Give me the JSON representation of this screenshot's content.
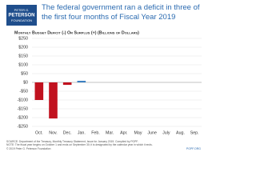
{
  "logo": {
    "line1": "PETER G.",
    "line2": "PETERSON",
    "line3": "FOUNDATION"
  },
  "chart_data": {
    "type": "bar",
    "title": "The federal government ran a deficit in three of the first four months of Fiscal Year 2019",
    "subtitle": "Monthly Budget Deficit (-) Or Surplus (+) (Billions of Dollars)",
    "categories": [
      "Oct.",
      "Nov.",
      "Dec.",
      "Jan.",
      "Feb.",
      "Mar.",
      "Apr.",
      "May",
      "June",
      "July",
      "Aug.",
      "Sep."
    ],
    "values": [
      -100,
      -205,
      -14,
      9,
      null,
      null,
      null,
      null,
      null,
      null,
      null,
      null
    ],
    "colors": [
      "#c1121f",
      "#c1121f",
      "#c1121f",
      "#3a7fc1",
      "#c1121f",
      "#c1121f",
      "#c1121f",
      "#c1121f",
      "#c1121f",
      "#c1121f",
      "#c1121f",
      "#c1121f"
    ],
    "ylim": [
      -250,
      250
    ],
    "yticks": [
      {
        "value": 250,
        "label": "$250"
      },
      {
        "value": 200,
        "label": "$200"
      },
      {
        "value": 150,
        "label": "$150"
      },
      {
        "value": 100,
        "label": "$100"
      },
      {
        "value": 50,
        "label": "$50"
      },
      {
        "value": 0,
        "label": "$0"
      },
      {
        "value": -50,
        "label": "-$50"
      },
      {
        "value": -100,
        "label": "-$100"
      },
      {
        "value": -150,
        "label": "-$150"
      },
      {
        "value": -200,
        "label": "-$200"
      },
      {
        "value": -250,
        "label": "-$250"
      }
    ],
    "grid": true
  },
  "footer": {
    "source": "SOURCE: Department of the Treasury, Monthly Treasury Statement, Issue for January 2019. Compiled by PGPF.",
    "note": "NOTE: The fiscal year begins on October 1 and ends on September 30; it is designated by the calendar year in which it ends.",
    "copyright": "© 2019 Peter G. Peterson Foundation",
    "url": "PGPF.ORG"
  }
}
